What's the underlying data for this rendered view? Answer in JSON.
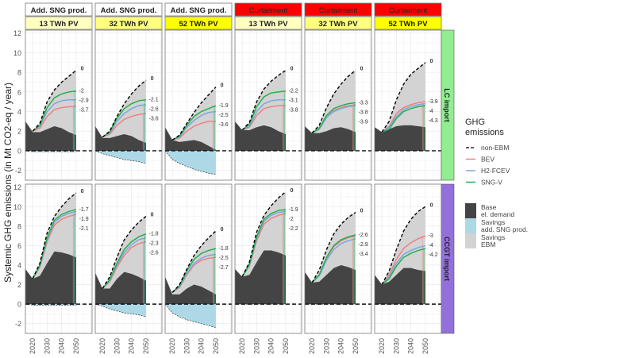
{
  "chart_data": {
    "type": "area",
    "ylabel": "Systemic GHG emissions (in Mt CO2-eq / year)",
    "ylim": [
      -3,
      12.3
    ],
    "xlim": [
      2015,
      2061
    ],
    "yticks": [
      -2,
      0,
      2,
      4,
      6,
      8,
      10,
      12
    ],
    "xticks": [
      2020,
      2030,
      2040,
      2050
    ],
    "grid": true,
    "legend_placement": "right",
    "colors": {
      "base": "#444444",
      "savings_ebm": "#d3d3d3",
      "savings_sng": "#add8e6",
      "non_ebm": "#000000",
      "bev": "#f08080",
      "h2": "#7ea6e0",
      "sng": "#22b14c",
      "pv13": "#ffffc0",
      "pv32": "#ffff80",
      "pv52": "#ffff00",
      "curtailment": "#ff0000",
      "lc_import": "#90ee90",
      "ccgt_import": "#9370db"
    },
    "columns": [
      {
        "strategy": "Add. SNG prod.",
        "pv": "13 TWh PV",
        "pvcolor": "#ffffc0",
        "stratcolor": "#ffffff"
      },
      {
        "strategy": "Add. SNG prod.",
        "pv": "32 TWh PV",
        "pvcolor": "#ffff80",
        "stratcolor": "#ffffff"
      },
      {
        "strategy": "Add. SNG prod.",
        "pv": "52 TWh PV",
        "pvcolor": "#ffff00",
        "stratcolor": "#ffffff"
      },
      {
        "strategy": "Curtailment",
        "pv": "13 TWh PV",
        "pvcolor": "#ffffc0",
        "stratcolor": "#ff0000"
      },
      {
        "strategy": "Curtailment",
        "pv": "32 TWh PV",
        "pvcolor": "#ffff80",
        "stratcolor": "#ff0000"
      },
      {
        "strategy": "Curtailment",
        "pv": "52 TWh PV",
        "pvcolor": "#ffff00",
        "stratcolor": "#ff0000"
      }
    ],
    "rows": [
      {
        "label": "LC import",
        "color": "#90ee90"
      },
      {
        "label": "CCGT import",
        "color": "#9370db"
      }
    ],
    "area_years": [
      2015,
      2020,
      2025,
      2030,
      2035,
      2040,
      2045,
      2050
    ],
    "line_years": [
      2020,
      2025,
      2030,
      2035,
      2040,
      2045,
      2050
    ],
    "panels": [
      [
        {
          "base": [
            3,
            1.9,
            1.9,
            2.2,
            2.5,
            2.3,
            1.9,
            1.6
          ],
          "savings_sng": [
            0,
            -0.1,
            -0.1,
            -0.1,
            -0.1,
            -0.1,
            -0.1,
            -0.1
          ],
          "non_ebm": [
            2.0,
            2.8,
            5.0,
            6.2,
            7.0,
            7.6,
            8.2
          ],
          "sng": [
            2.0,
            2.6,
            4.4,
            5.4,
            5.8,
            6.0,
            6.1
          ],
          "h2": [
            2.0,
            2.5,
            4.0,
            4.8,
            5.1,
            5.2,
            5.2
          ],
          "bev": [
            2.0,
            2.3,
            3.5,
            4.2,
            4.4,
            4.5,
            4.5
          ],
          "labels": [
            "0",
            "-2",
            "-2.9",
            "-3.7"
          ]
        },
        {
          "base": [
            2.5,
            1.3,
            1.3,
            1.5,
            1.7,
            1.5,
            1.1,
            0.8
          ],
          "savings_sng": [
            0,
            -0.3,
            -0.5,
            -0.7,
            -0.9,
            -1.0,
            -1.1,
            -1.3
          ],
          "non_ebm": [
            1.4,
            2.0,
            3.5,
            4.8,
            5.8,
            6.6,
            7.2
          ],
          "sng": [
            1.4,
            1.9,
            3.3,
            4.3,
            4.8,
            5.1,
            5.2
          ],
          "h2": [
            1.4,
            1.8,
            3.0,
            3.8,
            4.3,
            4.6,
            4.7
          ],
          "bev": [
            1.4,
            1.7,
            2.6,
            3.2,
            3.5,
            3.7,
            3.8
          ],
          "labels": [
            "0",
            "-2.1",
            "-2.6",
            "-3.6"
          ]
        },
        {
          "base": [
            2.4,
            1.1,
            0.9,
            1.0,
            1.1,
            0.9,
            0.5,
            0.1
          ],
          "savings_sng": [
            0,
            -0.9,
            -1.3,
            -1.6,
            -1.9,
            -2.1,
            -2.3,
            -2.4
          ],
          "non_ebm": [
            1.1,
            1.6,
            2.8,
            3.9,
            4.9,
            5.7,
            6.5
          ],
          "sng": [
            1.1,
            1.5,
            2.6,
            3.5,
            4.0,
            4.3,
            4.6
          ],
          "h2": [
            1.1,
            1.4,
            2.4,
            3.1,
            3.6,
            3.9,
            4.0
          ],
          "bev": [
            1.1,
            1.3,
            2.0,
            2.5,
            2.8,
            3.0,
            3.0
          ],
          "labels": [
            "0",
            "-1.9",
            "-2.5",
            "-3.6"
          ]
        },
        {
          "base": [
            3,
            2.1,
            2.1,
            2.4,
            2.6,
            2.4,
            2.0,
            1.7
          ],
          "savings_sng": [
            0,
            0,
            0,
            0,
            0,
            0,
            0,
            0
          ],
          "non_ebm": [
            2.1,
            2.9,
            5.0,
            6.3,
            7.1,
            7.7,
            8.2
          ],
          "sng": [
            2.1,
            2.7,
            4.5,
            5.5,
            5.9,
            6.0,
            6.1
          ],
          "h2": [
            2.1,
            2.5,
            4.0,
            4.8,
            5.1,
            5.2,
            5.2
          ],
          "bev": [
            2.1,
            2.4,
            3.6,
            4.3,
            4.5,
            4.6,
            4.6
          ],
          "labels": [
            "0",
            "-2.2",
            "-3.1",
            "-3.8"
          ]
        },
        {
          "base": [
            2.5,
            1.8,
            1.8,
            2.0,
            2.3,
            2.4,
            2.2,
            1.9
          ],
          "savings_sng": [
            0,
            0,
            0,
            0,
            0,
            0,
            0,
            0
          ],
          "non_ebm": [
            1.8,
            2.6,
            4.4,
            5.8,
            6.8,
            7.6,
            8.2
          ],
          "sng": [
            1.8,
            2.3,
            3.6,
            4.3,
            4.6,
            4.8,
            4.9
          ],
          "h2": [
            1.8,
            2.2,
            3.4,
            4.0,
            4.3,
            4.5,
            4.6
          ],
          "bev": [
            1.8,
            2.2,
            3.4,
            4.1,
            4.4,
            4.6,
            4.7
          ],
          "labels": [
            "0",
            "-3.3",
            "-3.8",
            "-3.9"
          ]
        },
        {
          "base": [
            2.4,
            1.9,
            2.2,
            2.5,
            2.6,
            2.6,
            2.5,
            2.4
          ],
          "savings_sng": [
            0,
            0,
            0,
            0,
            0,
            0,
            0,
            0
          ],
          "non_ebm": [
            1.9,
            3.0,
            5.2,
            6.8,
            7.8,
            8.4,
            9.0
          ],
          "sng": [
            1.9,
            2.2,
            3.3,
            4.0,
            4.3,
            4.5,
            4.6
          ],
          "h2": [
            1.9,
            2.4,
            3.5,
            4.2,
            4.5,
            4.7,
            4.8
          ],
          "bev": [
            1.9,
            2.5,
            3.8,
            4.4,
            4.7,
            4.9,
            5.0
          ],
          "labels": [
            "0",
            "-3.9",
            "-4",
            "-4.3"
          ]
        }
      ],
      [
        {
          "base": [
            3.6,
            2.6,
            2.9,
            4.2,
            5.4,
            5.3,
            5.1,
            4.8
          ],
          "savings_sng": [
            0,
            -0.1,
            -0.1,
            -0.1,
            -0.1,
            -0.1,
            -0.1,
            -0.1
          ],
          "non_ebm": [
            2.6,
            4.2,
            7.3,
            9.0,
            10.0,
            10.8,
            11.4
          ],
          "sng": [
            2.6,
            4.0,
            6.8,
            8.6,
            9.2,
            9.5,
            9.7
          ],
          "h2": [
            2.6,
            3.9,
            6.6,
            8.4,
            9.0,
            9.3,
            9.5
          ],
          "bev": [
            2.6,
            3.8,
            6.4,
            8.1,
            8.7,
            9.0,
            9.2
          ],
          "labels": [
            "0",
            "-1.7",
            "-1.9",
            "-2.1"
          ]
        },
        {
          "base": [
            3.2,
            1.6,
            1.6,
            2.6,
            3.3,
            3.1,
            2.8,
            2.4
          ],
          "savings_sng": [
            0,
            -0.2,
            -0.5,
            -0.7,
            -0.9,
            -1.0,
            -1.1,
            -1.3
          ],
          "non_ebm": [
            1.6,
            2.8,
            4.8,
            6.6,
            7.6,
            8.4,
            9.0
          ],
          "sng": [
            1.6,
            2.5,
            4.2,
            5.6,
            6.4,
            6.9,
            7.2
          ],
          "h2": [
            1.6,
            2.4,
            4.0,
            5.3,
            6.1,
            6.6,
            6.8
          ],
          "bev": [
            1.6,
            2.3,
            3.8,
            5.0,
            5.8,
            6.2,
            6.4
          ],
          "labels": [
            "0",
            "-1.8",
            "-2.3",
            "-2.6"
          ]
        },
        {
          "base": [
            2.8,
            1.0,
            1.0,
            1.6,
            2.0,
            1.8,
            1.4,
            1.0
          ],
          "savings_sng": [
            0,
            -0.9,
            -1.3,
            -1.6,
            -1.8,
            -2.0,
            -2.2,
            -2.4
          ],
          "non_ebm": [
            1.2,
            2.0,
            3.6,
            5.0,
            6.0,
            6.8,
            7.5
          ],
          "sng": [
            1.2,
            1.9,
            3.4,
            4.6,
            5.2,
            5.5,
            5.7
          ],
          "h2": [
            1.2,
            1.8,
            3.1,
            4.2,
            4.7,
            5.0,
            5.1
          ],
          "bev": [
            1.2,
            1.7,
            3.0,
            4.0,
            4.5,
            4.7,
            4.8
          ],
          "labels": [
            "0",
            "-1.8",
            "-2.5",
            "-2.7"
          ]
        },
        {
          "base": [
            3.6,
            2.8,
            3.0,
            4.3,
            5.5,
            5.5,
            5.3,
            5.0
          ],
          "savings_sng": [
            0,
            0,
            0,
            0,
            0,
            0,
            0,
            0
          ],
          "non_ebm": [
            2.8,
            4.3,
            7.4,
            9.1,
            10.1,
            10.9,
            11.5
          ],
          "sng": [
            2.8,
            4.1,
            6.9,
            8.7,
            9.3,
            9.6,
            9.7
          ],
          "h2": [
            2.8,
            4.0,
            6.7,
            8.5,
            9.1,
            9.4,
            9.5
          ],
          "bev": [
            2.8,
            3.9,
            6.5,
            8.2,
            8.8,
            9.1,
            9.3
          ],
          "labels": [
            "0",
            "-1.9",
            "-2",
            "-2.2"
          ]
        },
        {
          "base": [
            3.3,
            2.2,
            2.3,
            3.0,
            3.7,
            4.0,
            3.8,
            3.5
          ],
          "savings_sng": [
            0,
            0,
            0,
            0,
            0,
            0,
            0,
            0
          ],
          "non_ebm": [
            2.2,
            3.5,
            5.6,
            7.2,
            8.2,
            8.9,
            9.4
          ],
          "sng": [
            2.2,
            3.0,
            4.8,
            6.0,
            6.6,
            6.9,
            7.1
          ],
          "h2": [
            2.2,
            2.9,
            4.5,
            5.6,
            6.2,
            6.5,
            6.7
          ],
          "bev": [
            2.2,
            3.0,
            4.7,
            5.9,
            6.5,
            6.8,
            7.0
          ],
          "labels": [
            "0",
            "-2.6",
            "-2.9",
            "-3.4"
          ]
        },
        {
          "base": [
            3.0,
            2.0,
            2.3,
            3.0,
            3.7,
            3.7,
            3.5,
            3.4
          ],
          "savings_sng": [
            0,
            0,
            0,
            0,
            0,
            0,
            0,
            0
          ],
          "non_ebm": [
            2.0,
            3.4,
            5.6,
            7.5,
            8.7,
            9.5,
            10.0
          ],
          "sng": [
            2.0,
            2.6,
            3.9,
            4.8,
            5.2,
            5.5,
            5.7
          ],
          "h2": [
            2.0,
            2.8,
            4.2,
            5.1,
            5.5,
            5.8,
            6.0
          ],
          "bev": [
            2.0,
            3.0,
            4.6,
            5.7,
            6.3,
            6.7,
            7.0
          ],
          "labels": [
            "0",
            "-3",
            "-4",
            "-4.2"
          ]
        }
      ]
    ],
    "legend_lines": {
      "title": "GHG emissions",
      "items": [
        {
          "label": "non-EBM",
          "key": "non_ebm"
        },
        {
          "label": "BEV",
          "key": "bev"
        },
        {
          "label": "H2-FCEV",
          "key": "h2"
        },
        {
          "label": "SNG-V",
          "key": "sng"
        }
      ]
    },
    "legend_fills": [
      {
        "label": "Base el. demand",
        "key": "base"
      },
      {
        "label": "Savings add. SNG prod.",
        "key": "savings_sng"
      },
      {
        "label": "Savings EBM",
        "key": "savings_ebm"
      }
    ]
  }
}
